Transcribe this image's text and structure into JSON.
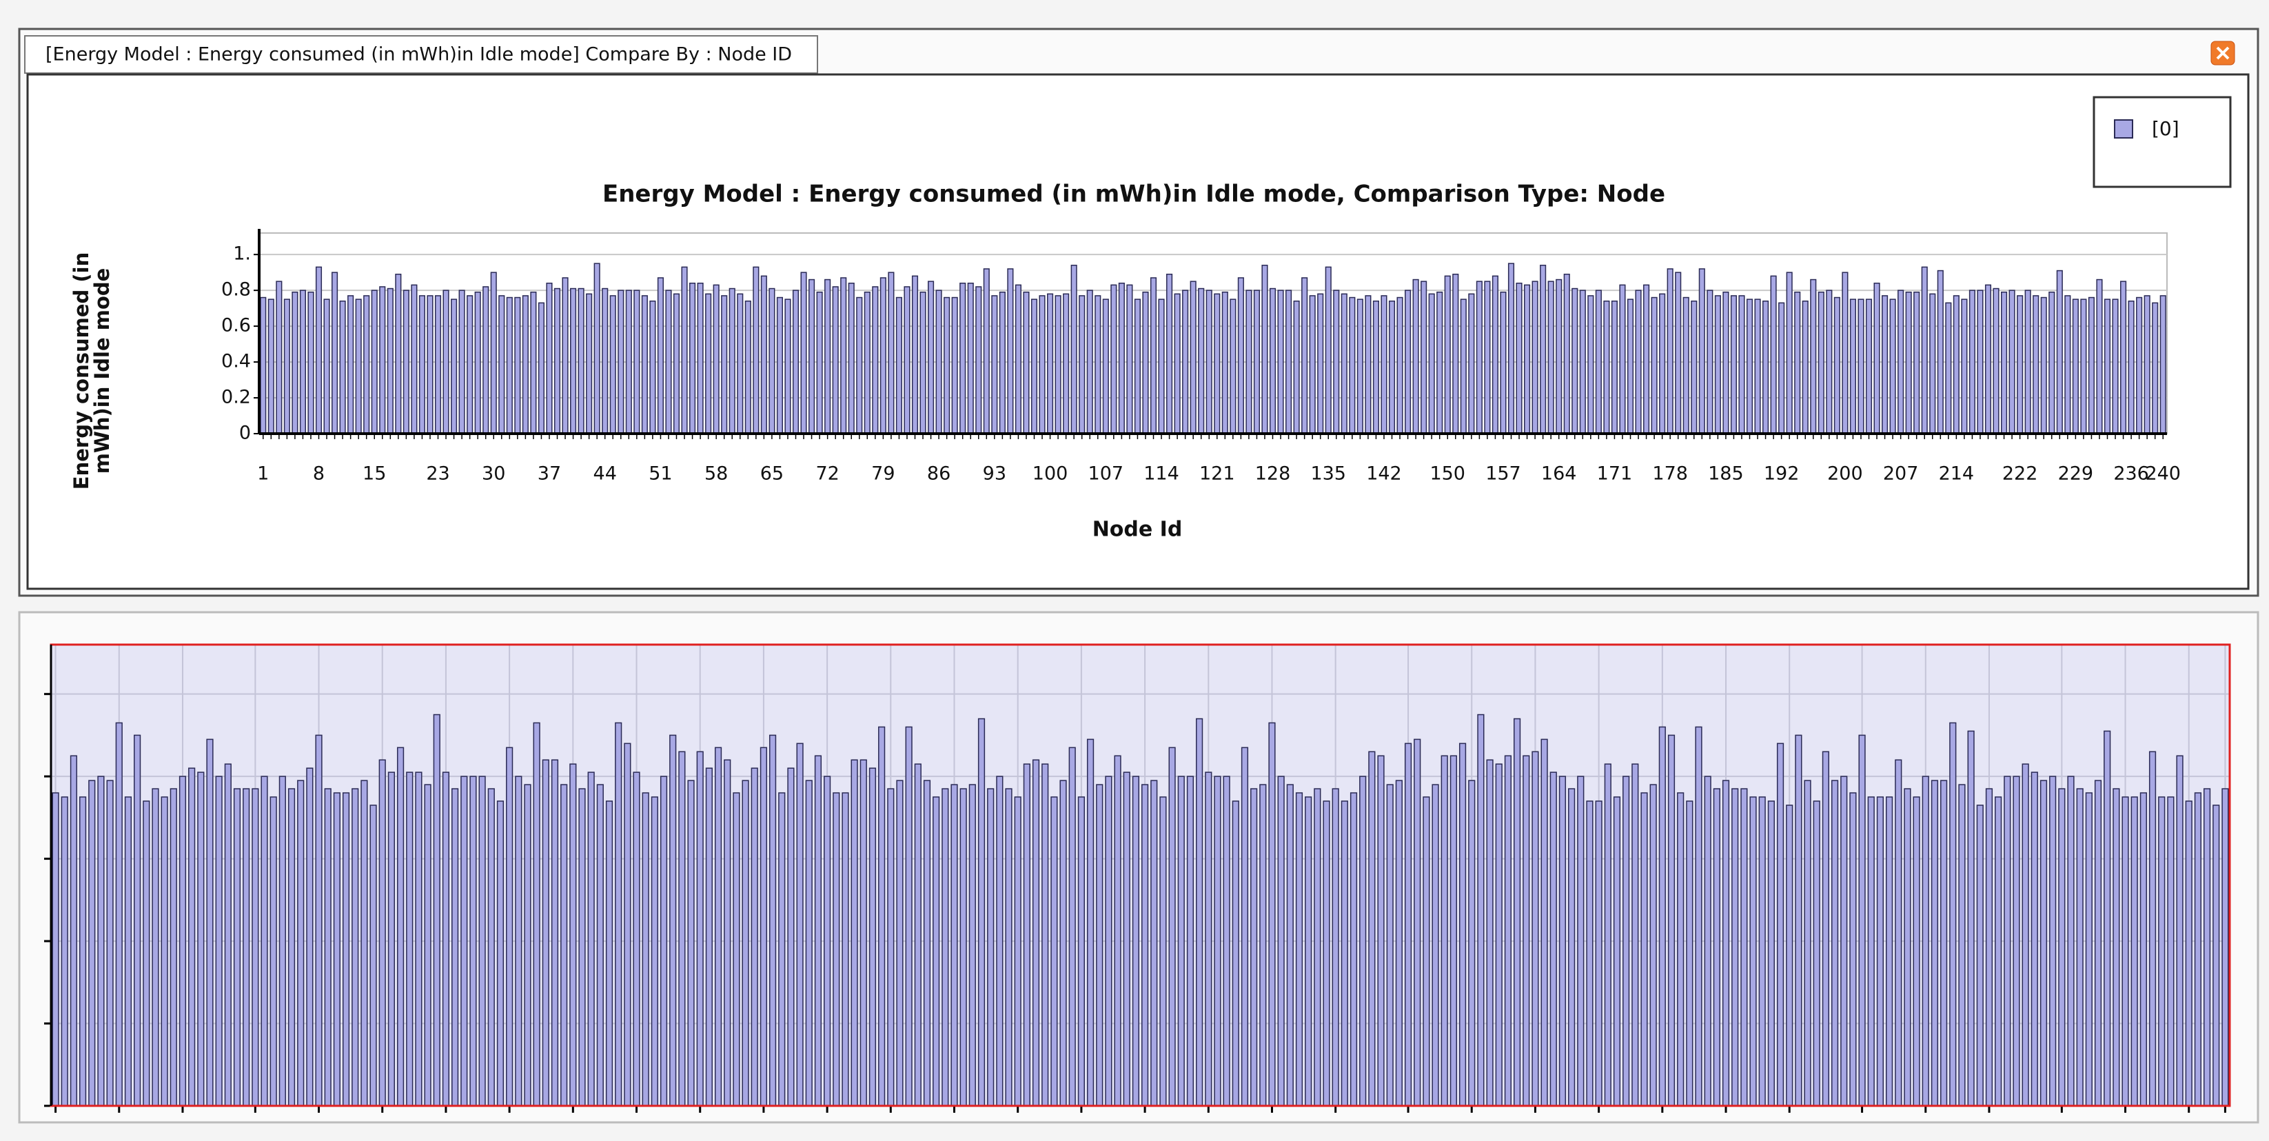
{
  "tab_title": "[Energy Model :  Energy consumed (in mWh)in Idle mode] Compare By : Node ID",
  "chart_data": {
    "type": "bar",
    "title": "Energy Model :  Energy consumed (in mWh)in Idle mode, Comparison Type: Node",
    "x_label": "Node Id",
    "y_label": [
      "Energy consumed (in",
      "mWh)in Idle mode"
    ],
    "x": [
      1,
      2,
      3,
      4,
      5,
      6,
      7,
      8,
      9,
      10,
      11,
      12,
      13,
      14,
      15,
      16,
      17,
      18,
      19,
      20,
      21,
      22,
      23,
      24,
      25,
      26,
      27,
      28,
      29,
      30,
      31,
      32,
      33,
      34,
      35,
      36,
      37,
      38,
      39,
      40,
      41,
      42,
      43,
      44,
      45,
      46,
      47,
      48,
      49,
      50,
      51,
      52,
      53,
      54,
      55,
      56,
      57,
      58,
      59,
      60,
      61,
      62,
      63,
      64,
      65,
      66,
      67,
      68,
      69,
      70,
      71,
      72,
      73,
      74,
      75,
      76,
      77,
      78,
      79,
      80,
      81,
      82,
      83,
      84,
      85,
      86,
      87,
      88,
      89,
      90,
      91,
      92,
      93,
      94,
      95,
      96,
      97,
      98,
      99,
      100,
      101,
      102,
      103,
      104,
      105,
      106,
      107,
      108,
      109,
      110,
      111,
      112,
      113,
      114,
      115,
      116,
      117,
      118,
      119,
      120,
      121,
      122,
      123,
      124,
      125,
      126,
      127,
      128,
      129,
      130,
      131,
      132,
      133,
      134,
      135,
      136,
      137,
      138,
      139,
      140,
      141,
      142,
      143,
      144,
      145,
      146,
      147,
      148,
      149,
      150,
      151,
      152,
      153,
      154,
      155,
      156,
      157,
      158,
      159,
      160,
      161,
      162,
      163,
      164,
      165,
      166,
      167,
      168,
      169,
      170,
      171,
      172,
      173,
      174,
      175,
      176,
      177,
      178,
      179,
      180,
      181,
      182,
      183,
      184,
      185,
      186,
      187,
      188,
      189,
      190,
      191,
      192,
      193,
      194,
      195,
      196,
      197,
      198,
      199,
      200,
      201,
      202,
      203,
      204,
      205,
      206,
      207,
      208,
      209,
      210,
      211,
      212,
      213,
      214,
      215,
      216,
      217,
      218,
      219,
      220,
      221,
      222,
      223,
      224,
      225,
      226,
      227,
      228,
      229,
      230,
      231,
      232,
      233,
      234,
      235,
      236,
      237,
      238,
      239,
      240
    ],
    "series": [
      {
        "name": "[0]",
        "color": "#a8a8e4",
        "values": [
          0.76,
          0.75,
          0.85,
          0.75,
          0.79,
          0.8,
          0.79,
          0.93,
          0.75,
          0.9,
          0.74,
          0.77,
          0.75,
          0.77,
          0.8,
          0.82,
          0.81,
          0.89,
          0.8,
          0.83,
          0.77,
          0.77,
          0.77,
          0.8,
          0.75,
          0.8,
          0.77,
          0.79,
          0.82,
          0.9,
          0.77,
          0.76,
          0.76,
          0.77,
          0.79,
          0.73,
          0.84,
          0.81,
          0.87,
          0.81,
          0.81,
          0.78,
          0.95,
          0.81,
          0.77,
          0.8,
          0.8,
          0.8,
          0.77,
          0.74,
          0.87,
          0.8,
          0.78,
          0.93,
          0.84,
          0.84,
          0.78,
          0.83,
          0.77,
          0.81,
          0.78,
          0.74,
          0.93,
          0.88,
          0.81,
          0.76,
          0.75,
          0.8,
          0.9,
          0.86,
          0.79,
          0.86,
          0.82,
          0.87,
          0.84,
          0.76,
          0.79,
          0.82,
          0.87,
          0.9,
          0.76,
          0.82,
          0.88,
          0.79,
          0.85,
          0.8,
          0.76,
          0.76,
          0.84,
          0.84,
          0.82,
          0.92,
          0.77,
          0.79,
          0.92,
          0.83,
          0.79,
          0.75,
          0.77,
          0.78,
          0.77,
          0.78,
          0.94,
          0.77,
          0.8,
          0.77,
          0.75,
          0.83,
          0.84,
          0.83,
          0.75,
          0.79,
          0.87,
          0.75,
          0.89,
          0.78,
          0.8,
          0.85,
          0.81,
          0.8,
          0.78,
          0.79,
          0.75,
          0.87,
          0.8,
          0.8,
          0.94,
          0.81,
          0.8,
          0.8,
          0.74,
          0.87,
          0.77,
          0.78,
          0.93,
          0.8,
          0.78,
          0.76,
          0.75,
          0.77,
          0.74,
          0.77,
          0.74,
          0.76,
          0.8,
          0.86,
          0.85,
          0.78,
          0.79,
          0.88,
          0.89,
          0.75,
          0.78,
          0.85,
          0.85,
          0.88,
          0.79,
          0.95,
          0.84,
          0.83,
          0.85,
          0.94,
          0.85,
          0.86,
          0.89,
          0.81,
          0.8,
          0.77,
          0.8,
          0.74,
          0.74,
          0.83,
          0.75,
          0.8,
          0.83,
          0.76,
          0.78,
          0.92,
          0.9,
          0.76,
          0.74,
          0.92,
          0.8,
          0.77,
          0.79,
          0.77,
          0.77,
          0.75,
          0.75,
          0.74,
          0.88,
          0.73,
          0.9,
          0.79,
          0.74,
          0.86,
          0.79,
          0.8,
          0.76,
          0.9,
          0.75,
          0.75,
          0.75,
          0.84,
          0.77,
          0.75,
          0.8,
          0.79,
          0.79,
          0.93,
          0.78,
          0.91,
          0.73,
          0.77,
          0.75,
          0.8,
          0.8,
          0.83,
          0.81,
          0.79,
          0.8,
          0.77,
          0.8,
          0.77,
          0.76,
          0.79,
          0.91,
          0.77,
          0.75,
          0.75,
          0.76,
          0.86,
          0.75,
          0.75,
          0.85,
          0.74,
          0.76,
          0.77,
          0.73,
          0.77
        ]
      }
    ],
    "xlim": [
      1,
      240
    ],
    "xticks": [
      1,
      8,
      15,
      23,
      30,
      37,
      44,
      51,
      58,
      65,
      72,
      79,
      86,
      93,
      100,
      107,
      114,
      121,
      128,
      135,
      142,
      150,
      157,
      164,
      171,
      178,
      185,
      192,
      200,
      207,
      214,
      222,
      229,
      236,
      240
    ],
    "ylim": [
      0,
      1.12
    ],
    "yticks": [
      0,
      0.2,
      0.4,
      0.6,
      0.8,
      {
        "value": 1,
        "label": "1."
      }
    ],
    "grid": true,
    "legend": "top-right"
  }
}
